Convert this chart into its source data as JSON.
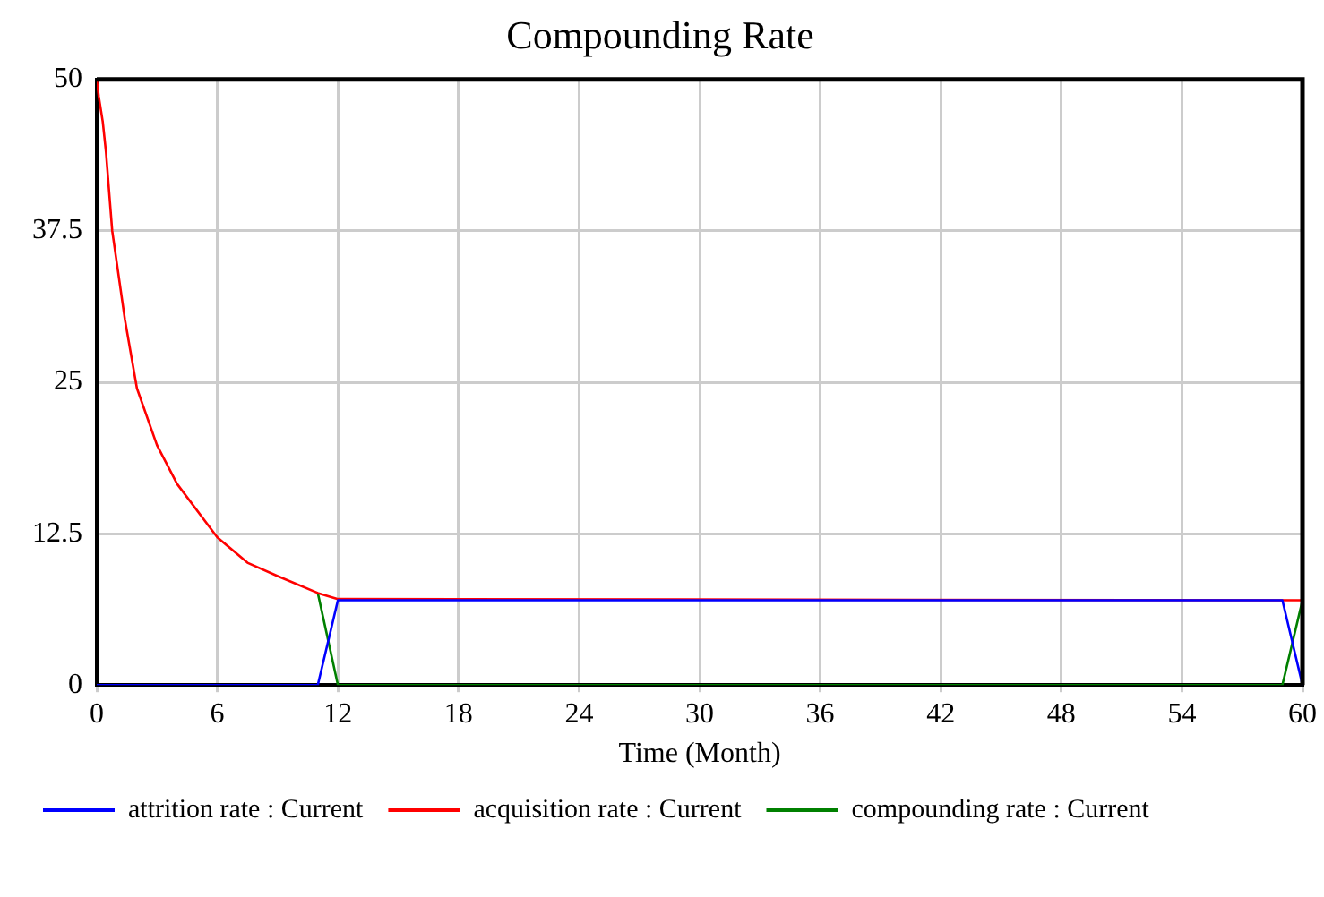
{
  "chart_data": {
    "type": "line",
    "title": "Compounding Rate",
    "xlabel": "Time (Month)",
    "xlim": [
      0,
      60
    ],
    "xticks": [
      0,
      6,
      12,
      18,
      24,
      30,
      36,
      42,
      48,
      54,
      60
    ],
    "ylim": [
      0,
      50
    ],
    "yticks": [
      0,
      12.5,
      25,
      37.5,
      50
    ],
    "grid": true,
    "legend": "bottom",
    "marker": "none",
    "line_style": "solid",
    "series": [
      {
        "name": "attrition rate : Current",
        "color": "#0000ff",
        "x": [
          0,
          11,
          12,
          59,
          60
        ],
        "values": [
          0,
          0,
          7,
          7,
          0
        ]
      },
      {
        "name": "acquisition rate : Current",
        "color": "#ff0000",
        "x": [
          0,
          0.1,
          0.3,
          0.46,
          0.77,
          1.4,
          2,
          3,
          4,
          6,
          7.5,
          9,
          11,
          12,
          60
        ],
        "values": [
          50,
          48.6,
          46.5,
          44,
          37.5,
          30.2,
          24.5,
          19.8,
          16.6,
          12.2,
          10.1,
          9,
          7.6,
          7.1,
          7
        ]
      },
      {
        "name": "compounding rate : Current",
        "color": "#008000",
        "x": [
          11,
          12,
          59,
          60
        ],
        "values": [
          7.6,
          0,
          0,
          7
        ]
      }
    ]
  }
}
